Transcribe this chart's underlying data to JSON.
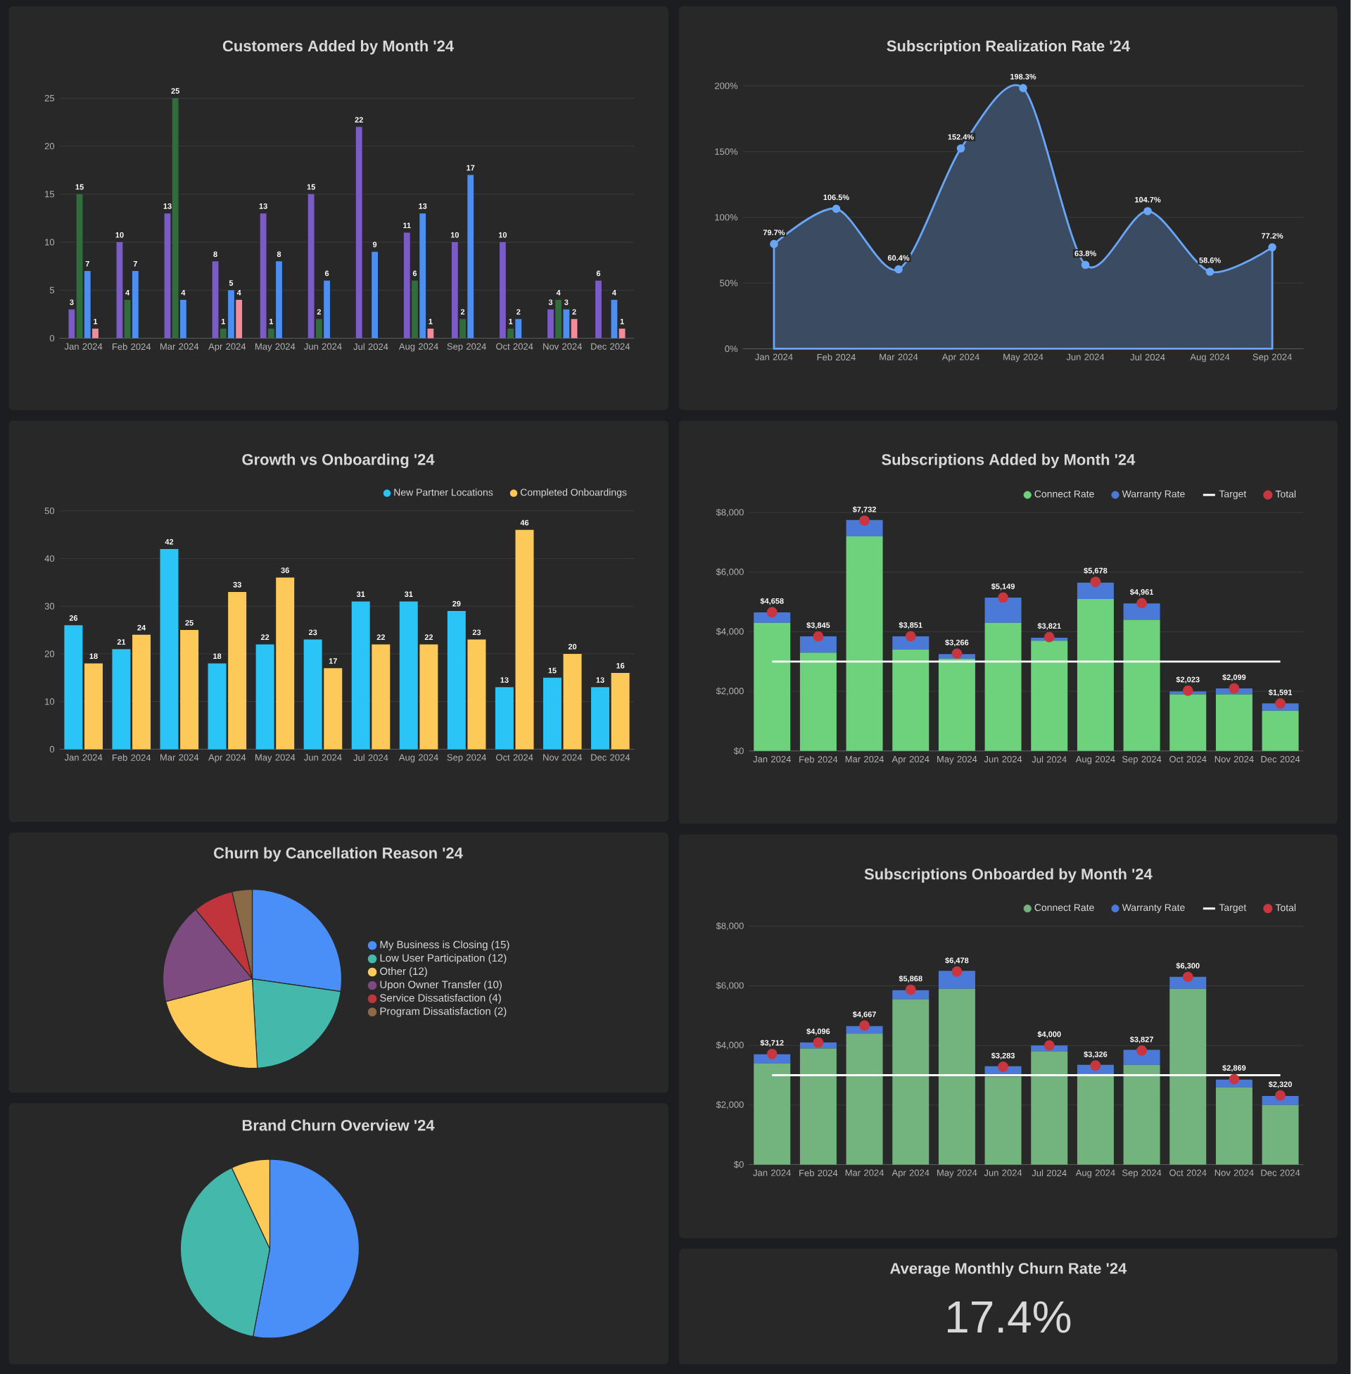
{
  "chart_data": [
    {
      "type": "bar",
      "title": "Customers Added by Month '24",
      "categories": [
        "Jan 2024",
        "Feb 2024",
        "Mar 2024",
        "Apr 2024",
        "May 2024",
        "Jun 2024",
        "Jul 2024",
        "Aug 2024",
        "Sep 2024",
        "Oct 2024",
        "Nov 2024",
        "Dec 2024"
      ],
      "series": [
        {
          "color": "#7b5cc7",
          "values": [
            3,
            10,
            13,
            8,
            13,
            15,
            22,
            11,
            10,
            10,
            3,
            6
          ]
        },
        {
          "color": "#2f6d3b",
          "values": [
            15,
            4,
            25,
            1,
            1,
            2,
            null,
            6,
            2,
            1,
            4,
            null
          ]
        },
        {
          "color": "#4c8ff0",
          "values": [
            7,
            7,
            4,
            5,
            8,
            6,
            9,
            13,
            17,
            2,
            3,
            4
          ]
        },
        {
          "color": "#f48b9b",
          "values": [
            1,
            null,
            null,
            4,
            null,
            null,
            null,
            1,
            null,
            null,
            2,
            1
          ]
        }
      ],
      "ylim": [
        0,
        25
      ],
      "yticks": [
        0,
        5,
        10,
        15,
        20,
        25
      ],
      "grid": "y",
      "data_labels": true
    },
    {
      "type": "area",
      "title": "Subscription Realization Rate '24",
      "categories": [
        "Jan 2024",
        "Feb 2024",
        "Mar 2024",
        "Apr 2024",
        "May 2024",
        "Jun 2024",
        "Jul 2024",
        "Aug 2024",
        "Sep 2024"
      ],
      "values": [
        79.7,
        106.5,
        60.4,
        152.4,
        198.3,
        63.8,
        104.7,
        58.6,
        77.2
      ],
      "value_labels": [
        "79.7%",
        "106.5%",
        "60.4%",
        "152.4%",
        "198.3%",
        "63.8%",
        "104.7%",
        "58.6%",
        "77.2%"
      ],
      "color": "#6aa6f8",
      "marker": "circle",
      "ylim": [
        0,
        200
      ],
      "yticks": [
        {
          "value": 0,
          "label": "0%"
        },
        {
          "value": 50,
          "label": "50%"
        },
        {
          "value": 100,
          "label": "100%"
        },
        {
          "value": 150,
          "label": "150%"
        },
        {
          "value": 200,
          "label": "200%"
        }
      ],
      "grid": "y"
    },
    {
      "type": "bar",
      "title": "Growth vs Onboarding '24",
      "categories": [
        "Jan 2024",
        "Feb 2024",
        "Mar 2024",
        "Apr 2024",
        "May 2024",
        "Jun 2024",
        "Jul 2024",
        "Aug 2024",
        "Sep 2024",
        "Oct 2024",
        "Nov 2024",
        "Dec 2024"
      ],
      "series": [
        {
          "name": "New Partner Locations",
          "color": "#2ac4f7",
          "values": [
            26,
            21,
            42,
            18,
            22,
            23,
            31,
            31,
            29,
            13,
            15,
            13
          ]
        },
        {
          "name": "Completed Onboardings",
          "color": "#fdc958",
          "values": [
            18,
            24,
            25,
            33,
            36,
            17,
            22,
            22,
            23,
            46,
            20,
            16
          ]
        }
      ],
      "ylim": [
        0,
        50
      ],
      "yticks": [
        0,
        10,
        20,
        30,
        40,
        50
      ],
      "grid": "y",
      "legend": "top right",
      "data_labels": true
    },
    {
      "type": "bar",
      "title": "Subscriptions Added by Month '24",
      "stacked": true,
      "categories": [
        "Jan 2024",
        "Feb 2024",
        "Mar 2024",
        "Apr 2024",
        "May 2024",
        "Jun 2024",
        "Jul 2024",
        "Aug 2024",
        "Sep 2024",
        "Oct 2024",
        "Nov 2024",
        "Dec 2024"
      ],
      "series": [
        {
          "name": "Connect Rate",
          "color": "#6dd27b",
          "values": [
            4300,
            3300,
            7200,
            3400,
            3100,
            4300,
            3700,
            5100,
            4400,
            1900,
            1900,
            1350
          ]
        },
        {
          "name": "Warranty Rate",
          "color": "#4a79d8",
          "values": [
            350,
            550,
            550,
            450,
            150,
            850,
            100,
            550,
            550,
            100,
            200,
            250
          ]
        },
        {
          "name": "Target",
          "type": "line",
          "color": "#ffffff",
          "values": [
            3000,
            3000,
            3000,
            3000,
            3000,
            3000,
            3000,
            3000,
            3000,
            3000,
            3000,
            3000
          ]
        },
        {
          "name": "Total",
          "type": "scatter",
          "color": "#c8363f",
          "marker": "circle",
          "values": [
            4658,
            3845,
            7732,
            3851,
            3266,
            5149,
            3821,
            5678,
            4961,
            2023,
            2099,
            1591
          ],
          "value_labels": [
            "$4,658",
            "$3,845",
            "$7,732",
            "$3,851",
            "$3,266",
            "$5,149",
            "$3,821",
            "$5,678",
            "$4,961",
            "$2,023",
            "$2,099",
            "$1,591"
          ]
        }
      ],
      "ylim": [
        0,
        8000
      ],
      "yticks": [
        {
          "value": 0,
          "label": "$0"
        },
        {
          "value": 2000,
          "label": "$2,000"
        },
        {
          "value": 4000,
          "label": "$4,000"
        },
        {
          "value": 6000,
          "label": "$6,000"
        },
        {
          "value": 8000,
          "label": "$8,000"
        }
      ],
      "grid": "y",
      "legend": "top right"
    },
    {
      "type": "pie",
      "title": "Churn by Cancellation Reason '24",
      "categories": [
        "My Business is Closing (15)",
        "Low User Participation (12)",
        "Other (12)",
        "Upon Owner Transfer (10)",
        "Service Dissatisfaction (4)",
        "Program Dissatisfaction (2)"
      ],
      "values": [
        15,
        12,
        12,
        10,
        4,
        2
      ],
      "colors": [
        "#4a8ff7",
        "#45b8ac",
        "#fdc957",
        "#7d4b7f",
        "#c0343c",
        "#8b6a48"
      ],
      "legend": "right"
    },
    {
      "type": "bar",
      "title": "Subscriptions Onboarded by Month '24",
      "stacked": true,
      "categories": [
        "Jan 2024",
        "Feb 2024",
        "Mar 2024",
        "Apr 2024",
        "May 2024",
        "Jun 2024",
        "Jul 2024",
        "Aug 2024",
        "Sep 2024",
        "Oct 2024",
        "Nov 2024",
        "Dec 2024"
      ],
      "series": [
        {
          "name": "Connect Rate",
          "color": "#72b37e",
          "values": [
            3400,
            3900,
            4400,
            5550,
            5900,
            2950,
            3800,
            3050,
            3350,
            5900,
            2600,
            2000
          ]
        },
        {
          "name": "Warranty Rate",
          "color": "#4a79d8",
          "values": [
            300,
            200,
            250,
            300,
            600,
            350,
            200,
            300,
            500,
            400,
            250,
            300
          ]
        },
        {
          "name": "Target",
          "type": "line",
          "color": "#ffffff",
          "values": [
            3000,
            3000,
            3000,
            3000,
            3000,
            3000,
            3000,
            3000,
            3000,
            3000,
            3000,
            3000
          ]
        },
        {
          "name": "Total",
          "type": "scatter",
          "color": "#c8363f",
          "marker": "circle",
          "values": [
            3712,
            4096,
            4667,
            5868,
            6478,
            3283,
            4000,
            3326,
            3827,
            6300,
            2869,
            2320
          ],
          "value_labels": [
            "$3,712",
            "$4,096",
            "$4,667",
            "$5,868",
            "$6,478",
            "$3,283",
            "$4,000",
            "$3,326",
            "$3,827",
            "$6,300",
            "$2,869",
            "$2,320"
          ]
        }
      ],
      "ylim": [
        0,
        8000
      ],
      "yticks": [
        {
          "value": 0,
          "label": "$0"
        },
        {
          "value": 2000,
          "label": "$2,000"
        },
        {
          "value": 4000,
          "label": "$4,000"
        },
        {
          "value": 6000,
          "label": "$6,000"
        },
        {
          "value": 8000,
          "label": "$8,000"
        }
      ],
      "grid": "y",
      "legend": "top right"
    },
    {
      "type": "pie",
      "title": "Brand Churn Overview '24",
      "categories": [
        null,
        null,
        null
      ],
      "values": [
        53,
        40,
        7
      ],
      "colors": [
        "#4a8ff7",
        "#45b8ac",
        "#fdc957"
      ]
    },
    {
      "type": "other",
      "title": "Average Monthly Churn Rate '24",
      "annotations": [
        "17.4%"
      ]
    }
  ]
}
